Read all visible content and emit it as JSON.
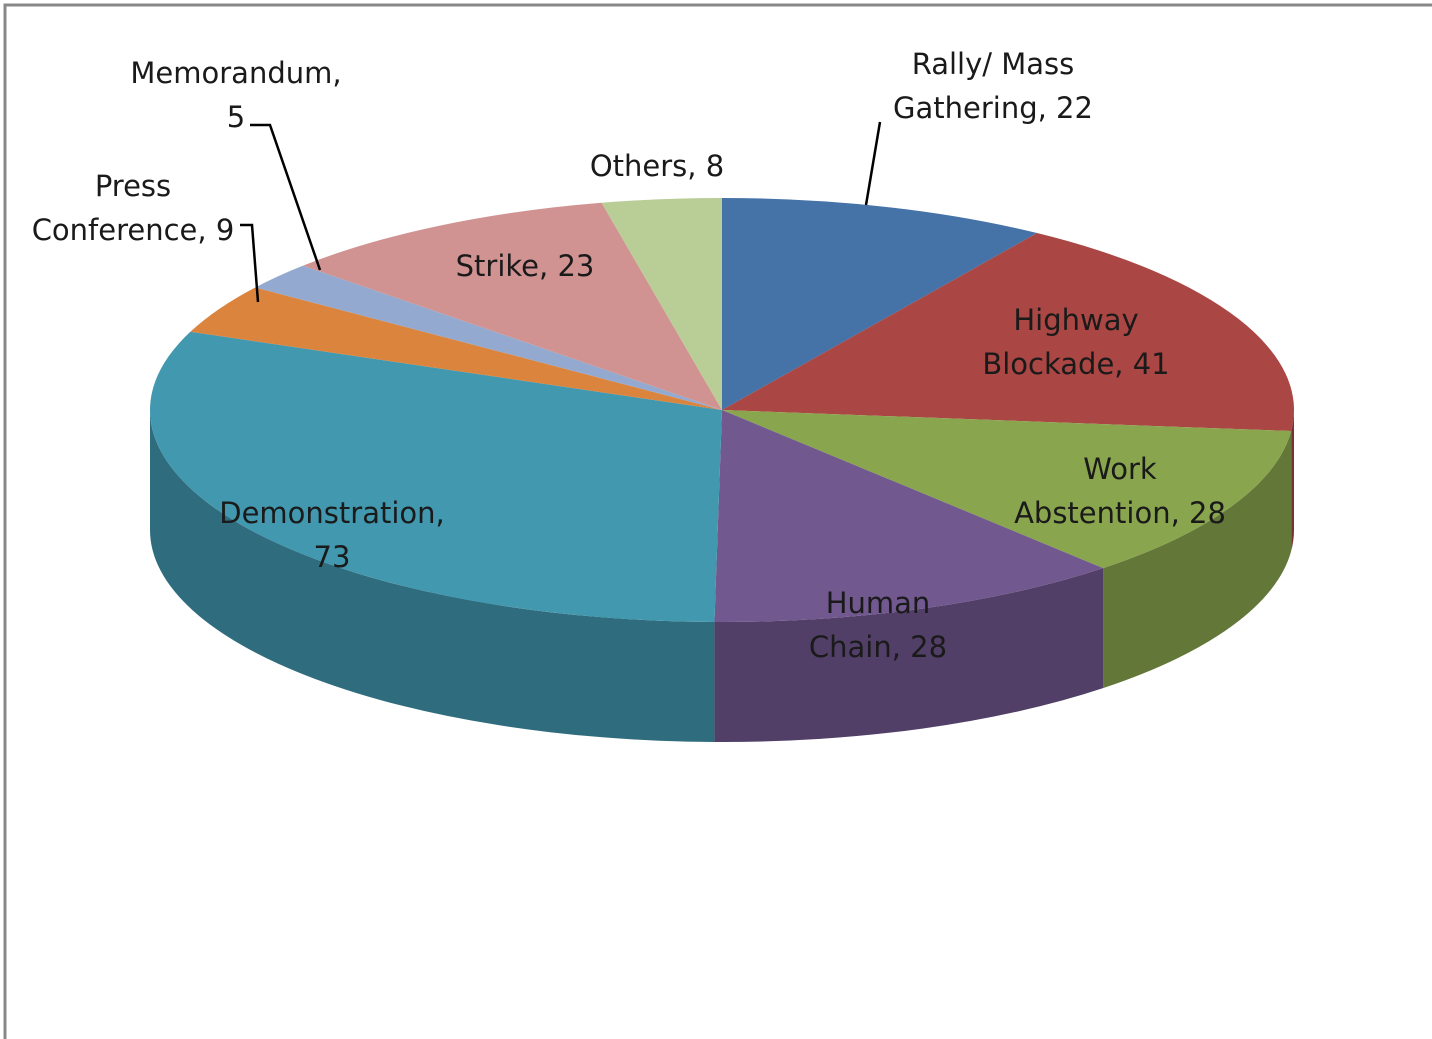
{
  "chart_data": {
    "type": "pie3d",
    "values": [
      22,
      41,
      28,
      28,
      73,
      9,
      5,
      23,
      8
    ],
    "value_labels": [
      "Rally/ Mass Gathering, 22",
      "Highway Blockade, 41",
      "Work Abstention, 28",
      "Human Chain, 28",
      "Demonstration, 73",
      "Press Conference, 9",
      "Memorandum, 5",
      "Strike, 23",
      "Others, 8"
    ],
    "colors": [
      "#4572a7",
      "#aa4643",
      "#89a54e",
      "#71588f",
      "#4198af",
      "#db843d",
      "#93a9cf",
      "#d19392",
      "#b9cd96"
    ]
  }
}
